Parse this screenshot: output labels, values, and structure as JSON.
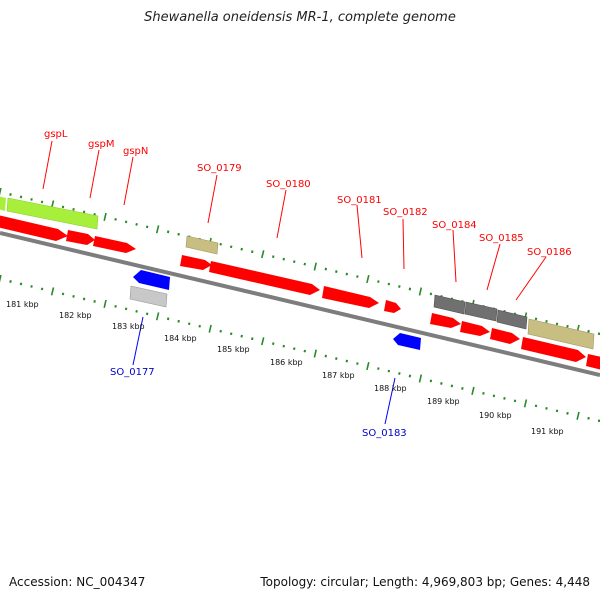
{
  "title": "Shewanella oneidensis MR-1, complete genome",
  "footer": {
    "accession": "Accession: NC_004347",
    "summary": "Topology: circular; Length: 4,969,803 bp; Genes: 4,448"
  },
  "colors": {
    "forward_gene": "#ff0000",
    "reverse_gene": "#0000ff",
    "backbone": "#808080",
    "ticks": "#2a8a2a",
    "green_feature": "#a8ef3c",
    "khaki_feature": "#c8be82",
    "gray_feature": "#707070",
    "light_gray_feature": "#c8c8c8"
  },
  "scale_labels": [
    "181 kbp",
    "182 kbp",
    "183 kbp",
    "184 kbp",
    "185 kbp",
    "186 kbp",
    "187 kbp",
    "188 kbp",
    "189 kbp",
    "190 kbp",
    "191 kbp"
  ],
  "forward_gene_labels": [
    "gspL",
    "gspM",
    "gspN",
    "SO_0179",
    "SO_0180",
    "SO_0181",
    "SO_0182",
    "SO_0184",
    "SO_0185",
    "SO_0186"
  ],
  "reverse_gene_labels": [
    "SO_0177",
    "SO_0183"
  ]
}
